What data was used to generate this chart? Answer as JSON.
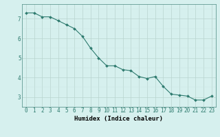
{
  "x": [
    0,
    1,
    2,
    3,
    4,
    5,
    6,
    7,
    8,
    9,
    10,
    11,
    12,
    13,
    14,
    15,
    16,
    17,
    18,
    19,
    20,
    21,
    22,
    23
  ],
  "y": [
    7.3,
    7.3,
    7.1,
    7.1,
    6.9,
    6.7,
    6.5,
    6.1,
    5.5,
    5.0,
    4.6,
    4.6,
    4.4,
    4.35,
    4.05,
    3.95,
    4.05,
    3.55,
    3.15,
    3.1,
    3.05,
    2.85,
    2.85,
    3.05
  ],
  "line_color": "#2d7a6e",
  "marker": "D",
  "marker_size": 2.0,
  "bg_color": "#d6f0ee",
  "grid_color_major": "#b8d4cf",
  "grid_color_minor": "#cce4e0",
  "xlabel": "Humidex (Indice chaleur)",
  "xlabel_fontsize": 6.5,
  "xlabel_fontweight": "bold",
  "yticks": [
    3,
    4,
    5,
    6,
    7
  ],
  "xticks": [
    0,
    1,
    2,
    3,
    4,
    5,
    6,
    7,
    8,
    9,
    10,
    11,
    12,
    13,
    14,
    15,
    16,
    17,
    18,
    19,
    20,
    21,
    22,
    23
  ],
  "xlim": [
    -0.5,
    23.5
  ],
  "ylim": [
    2.5,
    7.75
  ],
  "tick_fontsize": 5.5,
  "line_width": 0.8,
  "spine_color": "#4a8a80"
}
